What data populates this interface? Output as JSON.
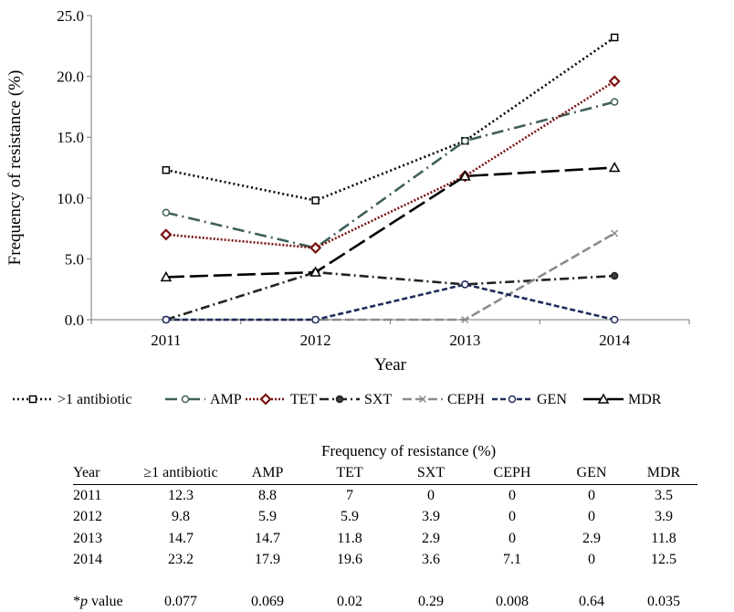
{
  "chart_data": {
    "type": "line",
    "title": "",
    "xlabel": "Year",
    "ylabel": "Frequency of resistance (%)",
    "categories": [
      "2011",
      "2012",
      "2013",
      "2014"
    ],
    "ylim": [
      0,
      25
    ],
    "yticks": [
      "0.0",
      "5.0",
      "10.0",
      "15.0",
      "20.0",
      "25.0"
    ],
    "grid": false,
    "legend_position": "bottom",
    "series": [
      {
        "name": ">1 antibiotic",
        "values": [
          12.3,
          9.8,
          14.7,
          23.2
        ],
        "color": "#000000",
        "dash": "2,3",
        "marker": "square",
        "fill": "#ffffff"
      },
      {
        "name": "AMP",
        "values": [
          8.8,
          5.9,
          14.7,
          17.9
        ],
        "color": "#3f5f5a",
        "dash": "13,5,2,5",
        "marker": "circle",
        "fill": "#ffffff"
      },
      {
        "name": "TET",
        "values": [
          7,
          5.9,
          11.8,
          19.6
        ],
        "color": "#7a1212",
        "dash": "2,2",
        "marker": "diamond",
        "fill": "#ffffff"
      },
      {
        "name": "SXT",
        "values": [
          0,
          3.9,
          2.9,
          3.6
        ],
        "color": "#222222",
        "dash": "10,4,2,4",
        "marker": "circle",
        "fill": "#3a3a3a"
      },
      {
        "name": "CEPH",
        "values": [
          0,
          0,
          0,
          7.1
        ],
        "color": "#8c8c8c",
        "dash": "10,4",
        "marker": "x",
        "fill": "#ffffff"
      },
      {
        "name": "GEN",
        "values": [
          0,
          0,
          2.9,
          0
        ],
        "color": "#1f2c5c",
        "dash": "6,3",
        "marker": "circle",
        "fill": "#ffffff"
      },
      {
        "name": "MDR",
        "values": [
          3.5,
          3.9,
          11.8,
          12.5
        ],
        "color": "#000000",
        "dash": "20,6",
        "marker": "triangle",
        "fill": "#ffffff"
      }
    ]
  },
  "table": {
    "title": "Frequency of resistance (%)",
    "headers": [
      "Year",
      "≥1 antibiotic",
      "AMP",
      "TET",
      "SXT",
      "CEPH",
      "GEN",
      "MDR"
    ],
    "rows": [
      [
        "2011",
        "12.3",
        "8.8",
        "7",
        "0",
        "0",
        "0",
        "3.5"
      ],
      [
        "2012",
        "9.8",
        "5.9",
        "5.9",
        "3.9",
        "0",
        "0",
        "3.9"
      ],
      [
        "2013",
        "14.7",
        "14.7",
        "11.8",
        "2.9",
        "0",
        "2.9",
        "11.8"
      ],
      [
        "2014",
        "23.2",
        "17.9",
        "19.6",
        "3.6",
        "7.1",
        "0",
        "12.5"
      ]
    ],
    "pvalue": {
      "label_prefix": "*",
      "label_italic": "p",
      "label_suffix": " value",
      "values": [
        "0.077",
        "0.069",
        "0.02",
        "0.29",
        "0.008",
        "0.64",
        "0.035"
      ]
    }
  }
}
